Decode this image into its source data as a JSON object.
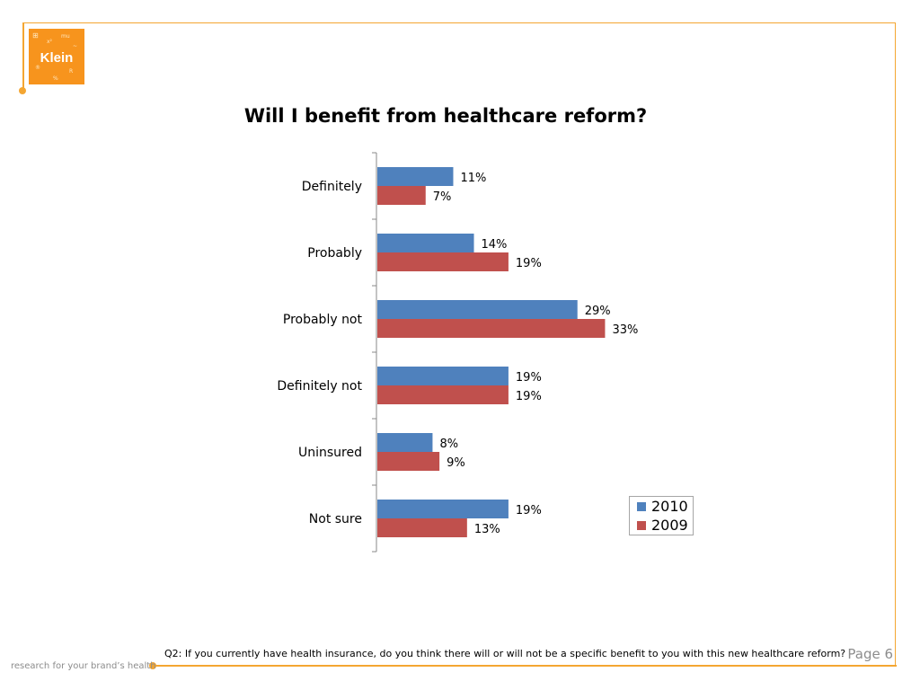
{
  "logo": {
    "text": "Klein"
  },
  "chart_data": {
    "type": "bar",
    "orientation": "horizontal",
    "title": "Will I benefit from healthcare reform?",
    "categories": [
      "Definitely",
      "Probably",
      "Probably not",
      "Definitely not",
      "Uninsured",
      "Not sure"
    ],
    "series": [
      {
        "name": "2010",
        "values": [
          11,
          14,
          29,
          19,
          8,
          19
        ],
        "color": "#4f81bd"
      },
      {
        "name": "2009",
        "values": [
          7,
          19,
          33,
          19,
          9,
          13
        ],
        "color": "#c0504d"
      }
    ],
    "value_suffix": "%",
    "xlim": [
      0,
      35
    ],
    "legend_position": "bottom-right",
    "grid": false
  },
  "footer": {
    "question": "Q2: If you currently have health insurance, do you think there will or will not be a specific benefit to you with this new healthcare reform?",
    "page": "Page 6",
    "tagline": "research for your brand’s health"
  }
}
